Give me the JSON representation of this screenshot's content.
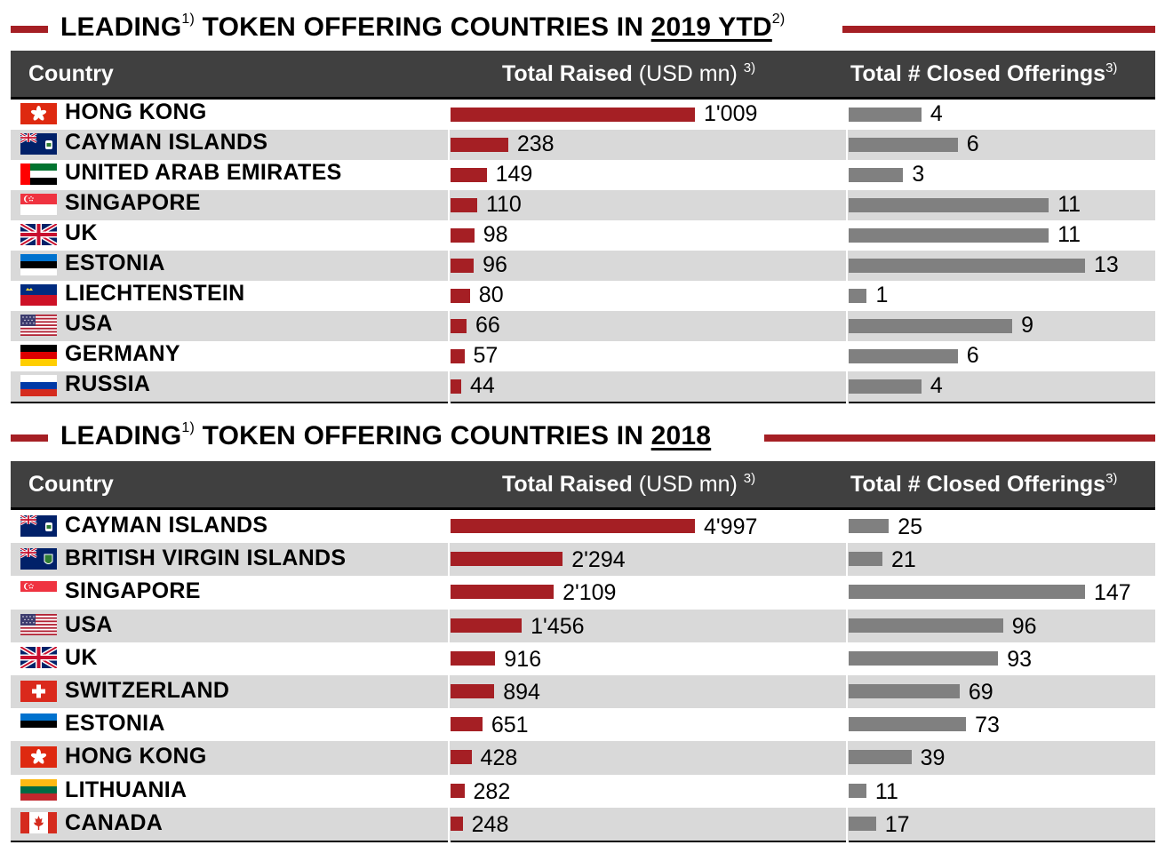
{
  "colors": {
    "accent": "#a51f24",
    "offer_bar": "#808080",
    "header_bg": "#404040",
    "stripe": "#d9d9d9"
  },
  "chart_data": [
    {
      "type": "bar",
      "title": {
        "prefix": "LEADING",
        "sup1": "1)",
        "middle": " TOKEN OFFERING COUNTRIES IN ",
        "year": "2019 YTD",
        "sup2": "2)"
      },
      "columns": {
        "country": "Country",
        "raised_label": "Total Raised",
        "raised_unit": " (USD mn) ",
        "raised_sup": "3)",
        "offer_label": "Total # Closed Offerings",
        "offer_sup": "3)"
      },
      "categories": [
        "HONG KONG",
        "CAYMAN ISLANDS",
        "UNITED ARAB EMIRATES",
        "SINGAPORE",
        "UK",
        "ESTONIA",
        "LIECHTENSTEIN",
        "USA",
        "GERMANY",
        "RUSSIA"
      ],
      "flags": [
        "hongkong-flag-icon",
        "cayman-flag-icon",
        "uae-flag-icon",
        "singapore-flag-icon",
        "uk-flag-icon",
        "estonia-flag-icon",
        "liechtenstein-flag-icon",
        "usa-flag-icon",
        "germany-flag-icon",
        "russia-flag-icon"
      ],
      "series": [
        {
          "values": [
            1009,
            238,
            149,
            110,
            98,
            96,
            80,
            66,
            57,
            44
          ],
          "labels": [
            "1'009",
            "238",
            "149",
            "110",
            "98",
            "96",
            "80",
            "66",
            "57",
            "44"
          ]
        },
        {
          "values": [
            4,
            6,
            3,
            11,
            11,
            13,
            1,
            9,
            6,
            4
          ],
          "labels": [
            "4",
            "6",
            "3",
            "11",
            "11",
            "13",
            "1",
            "9",
            "6",
            "4"
          ]
        }
      ]
    },
    {
      "type": "bar",
      "title": {
        "prefix": "LEADING",
        "sup1": "1)",
        "middle": " TOKEN OFFERING COUNTRIES IN ",
        "year": "2018",
        "sup2": ""
      },
      "columns": {
        "country": "Country",
        "raised_label": "Total Raised",
        "raised_unit": " (USD mn) ",
        "raised_sup": "3)",
        "offer_label": "Total # Closed Offerings",
        "offer_sup": "3)"
      },
      "categories": [
        "CAYMAN ISLANDS",
        "BRITISH VIRGIN ISLANDS",
        "SINGAPORE",
        "USA",
        "UK",
        "SWITZERLAND",
        "ESTONIA",
        "HONG KONG",
        "LITHUANIA",
        "CANADA"
      ],
      "flags": [
        "cayman-flag-icon",
        "bvi-flag-icon",
        "singapore-flag-icon",
        "usa-flag-icon",
        "uk-flag-icon",
        "switzerland-flag-icon",
        "estonia-flag-icon",
        "hongkong-flag-icon",
        "lithuania-flag-icon",
        "canada-flag-icon"
      ],
      "series": [
        {
          "values": [
            4997,
            2294,
            2109,
            1456,
            916,
            894,
            651,
            428,
            282,
            248
          ],
          "labels": [
            "4'997",
            "2'294",
            "2'109",
            "1'456",
            "916",
            "894",
            "651",
            "428",
            "282",
            "248"
          ]
        },
        {
          "values": [
            25,
            21,
            147,
            96,
            93,
            69,
            73,
            39,
            11,
            17
          ],
          "labels": [
            "25",
            "21",
            "147",
            "96",
            "93",
            "69",
            "73",
            "39",
            "11",
            "17"
          ]
        }
      ]
    }
  ]
}
